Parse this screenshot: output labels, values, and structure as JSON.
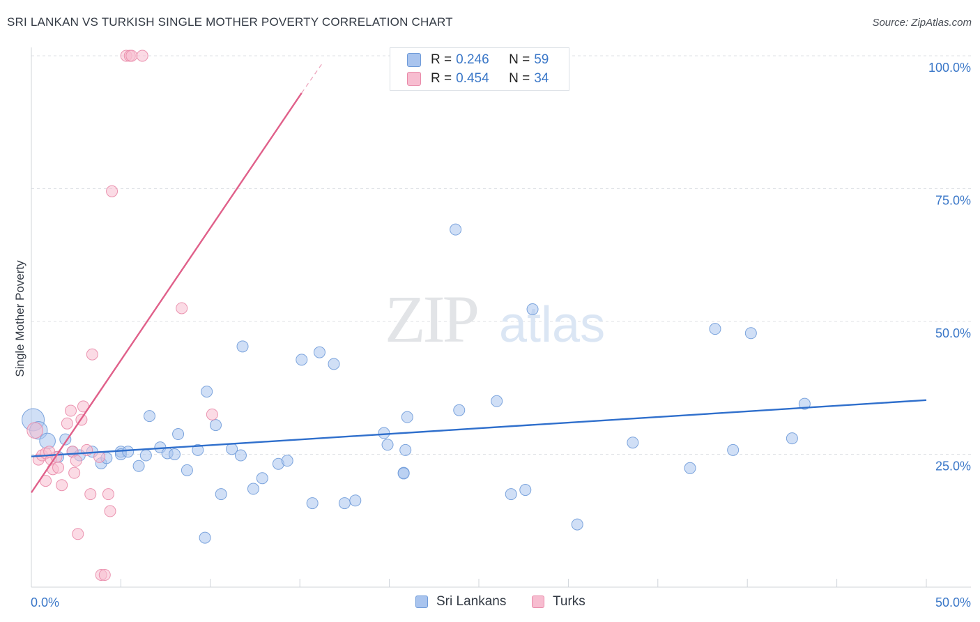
{
  "title": "SRI LANKAN VS TURKISH SINGLE MOTHER POVERTY CORRELATION CHART",
  "source": "Source: ZipAtlas.com",
  "watermark": {
    "zip": "ZIP",
    "atlas": "atlas"
  },
  "stats": [
    {
      "r_label": "R =",
      "r_value": "0.246",
      "n_label": "N =",
      "n_value": "59",
      "color": "#a9c4ee",
      "border": "#6f9bd9"
    },
    {
      "r_label": "R =",
      "r_value": "0.454",
      "n_label": "N =",
      "n_value": "34",
      "color": "#f7bdd0",
      "border": "#e98aa9"
    }
  ],
  "legend": [
    {
      "label": "Sri Lankans",
      "color": "#a9c4ee",
      "border": "#6f9bd9"
    },
    {
      "label": "Turks",
      "color": "#f7bdd0",
      "border": "#e98aa9"
    }
  ],
  "chart_data": {
    "type": "scatter",
    "title": "SRI LANKAN VS TURKISH SINGLE MOTHER POVERTY CORRELATION CHART",
    "xlabel": "",
    "ylabel": "Single Mother Poverty",
    "xlim": [
      0,
      50
    ],
    "ylim": [
      0,
      100
    ],
    "x_tick_labels": [
      "0.0%",
      "50.0%"
    ],
    "y_tick_labels": [
      {
        "value": 25,
        "label": "25.0%"
      },
      {
        "value": 50,
        "label": "50.0%"
      },
      {
        "value": 75,
        "label": "75.0%"
      },
      {
        "value": 100,
        "label": "100.0%"
      }
    ],
    "grid": true,
    "series": [
      {
        "name": "Sri Lankans",
        "color": "#6f9bd9",
        "fill": "#a9c4ee",
        "trend_color": "#2f6fcc",
        "trend": {
          "x0": 0,
          "y0": 24.6,
          "x1": 50,
          "y1": 35.2
        },
        "points": [
          [
            0.1,
            31.5,
            4
          ],
          [
            0.4,
            29.5,
            2.5
          ],
          [
            0.9,
            27.5,
            2
          ],
          [
            1.5,
            24.5,
            1
          ],
          [
            1.9,
            27.8,
            1
          ],
          [
            2.3,
            25.5,
            1
          ],
          [
            2.7,
            24.8,
            1
          ],
          [
            3.4,
            25.5,
            1
          ],
          [
            3.9,
            23.3,
            1
          ],
          [
            4.2,
            24.3,
            1
          ],
          [
            5.0,
            25.5,
            1
          ],
          [
            5.0,
            25.0,
            1
          ],
          [
            5.4,
            25.5,
            1
          ],
          [
            6.0,
            22.8,
            1
          ],
          [
            6.4,
            24.8,
            1
          ],
          [
            6.6,
            32.2,
            1
          ],
          [
            7.2,
            26.3,
            1
          ],
          [
            7.6,
            25.2,
            1
          ],
          [
            8.0,
            25.0,
            1
          ],
          [
            8.2,
            28.8,
            1
          ],
          [
            8.7,
            22.0,
            1
          ],
          [
            9.3,
            25.8,
            1
          ],
          [
            9.7,
            9.3,
            1
          ],
          [
            9.8,
            36.8,
            1
          ],
          [
            10.3,
            30.5,
            1
          ],
          [
            10.6,
            17.5,
            1
          ],
          [
            11.2,
            26.0,
            1
          ],
          [
            11.7,
            24.8,
            1
          ],
          [
            11.8,
            45.3,
            1
          ],
          [
            12.4,
            18.5,
            1
          ],
          [
            12.9,
            20.5,
            1
          ],
          [
            13.8,
            23.2,
            1
          ],
          [
            14.3,
            23.8,
            1
          ],
          [
            15.1,
            42.8,
            1
          ],
          [
            15.7,
            15.8,
            1
          ],
          [
            16.1,
            44.2,
            1
          ],
          [
            16.9,
            42.0,
            1
          ],
          [
            17.5,
            15.8,
            1
          ],
          [
            18.1,
            16.3,
            1
          ],
          [
            19.7,
            29.0,
            1
          ],
          [
            19.9,
            26.8,
            1
          ],
          [
            20.8,
            21.5,
            1
          ],
          [
            20.9,
            25.8,
            1
          ],
          [
            21.0,
            32.0,
            1
          ],
          [
            23.7,
            67.3,
            1
          ],
          [
            23.9,
            33.3,
            1
          ],
          [
            26.0,
            35.0,
            1
          ],
          [
            26.8,
            17.5,
            1
          ],
          [
            27.6,
            18.3,
            1
          ],
          [
            28.0,
            52.3,
            1
          ],
          [
            30.5,
            11.8,
            1
          ],
          [
            33.6,
            27.2,
            1
          ],
          [
            36.8,
            22.4,
            1
          ],
          [
            38.2,
            48.6,
            1
          ],
          [
            39.2,
            25.8,
            1
          ],
          [
            40.2,
            47.8,
            1
          ],
          [
            42.5,
            28.0,
            1
          ],
          [
            43.2,
            34.5,
            1
          ],
          [
            20.8,
            21.4,
            1
          ]
        ]
      },
      {
        "name": "Turks",
        "color": "#e98aa9",
        "fill": "#f7bdd0",
        "trend_color": "#e0608a",
        "trend": {
          "x0": 0,
          "y0": 17.8,
          "x1": 15.1,
          "y1": 93.0
        },
        "trend_dashed_to": {
          "x": 16.3,
          "y": 98.8
        },
        "points": [
          [
            0.2,
            29.5,
            2
          ],
          [
            0.4,
            24.0,
            1
          ],
          [
            0.6,
            24.8,
            1
          ],
          [
            0.8,
            25.2,
            1
          ],
          [
            0.8,
            20.0,
            1
          ],
          [
            1.1,
            24.0,
            1
          ],
          [
            1.2,
            22.2,
            1
          ],
          [
            1.4,
            24.5,
            1
          ],
          [
            1.5,
            22.5,
            1
          ],
          [
            1.7,
            19.2,
            1
          ],
          [
            2.0,
            30.8,
            1
          ],
          [
            2.2,
            33.2,
            1
          ],
          [
            2.3,
            25.5,
            1
          ],
          [
            2.4,
            21.5,
            1
          ],
          [
            2.5,
            23.8,
            1
          ],
          [
            2.6,
            10.0,
            1
          ],
          [
            2.8,
            31.5,
            1
          ],
          [
            2.9,
            34.0,
            1
          ],
          [
            3.1,
            25.8,
            1
          ],
          [
            3.3,
            17.5,
            1
          ],
          [
            3.4,
            43.8,
            1
          ],
          [
            3.8,
            24.5,
            1
          ],
          [
            3.9,
            2.3,
            1
          ],
          [
            4.1,
            2.3,
            1
          ],
          [
            4.3,
            17.5,
            1
          ],
          [
            4.4,
            14.3,
            1
          ],
          [
            4.5,
            74.5,
            1
          ],
          [
            5.3,
            100.0,
            1
          ],
          [
            5.5,
            100.0,
            1
          ],
          [
            5.6,
            100.0,
            1
          ],
          [
            6.2,
            100.0,
            1
          ],
          [
            8.4,
            52.5,
            1
          ],
          [
            10.1,
            32.5,
            1
          ],
          [
            1.0,
            25.5,
            1
          ]
        ]
      }
    ]
  }
}
